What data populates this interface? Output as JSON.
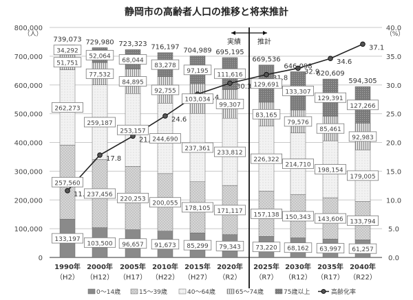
{
  "chart_data": {
    "type": "bar",
    "title": "静岡市の高齢者人口の推移と将来推計",
    "categories": [
      "1990年",
      "2000年",
      "2005年",
      "2010年",
      "2015年",
      "2020年",
      "2025年",
      "2030年",
      "2035年",
      "2040年"
    ],
    "category_sublabels": [
      "（H2）",
      "（H12）",
      "（H17）",
      "（H22）",
      "（H27）",
      "（R2）",
      "（R7）",
      "（R12）",
      "（R17）",
      "（R22）"
    ],
    "series": [
      {
        "name": "0～14歳",
        "color": "#8a8a8a",
        "values": [
          133197,
          103500,
          96657,
          91673,
          85299,
          79343,
          73220,
          68162,
          63997,
          61257
        ]
      },
      {
        "name": "15～39歳",
        "color": "#d4d4d4",
        "values": [
          257560,
          237456,
          220253,
          200055,
          178105,
          171117,
          157138,
          150343,
          143606,
          133794
        ]
      },
      {
        "name": "40～64歳",
        "color": "#eeeeee",
        "values": [
          262273,
          259187,
          253157,
          244690,
          237361,
          233812,
          226322,
          214710,
          198154,
          179005
        ]
      },
      {
        "name": "65～74歳",
        "color": "#bdbdbd",
        "values": [
          51751,
          77532,
          84895,
          92755,
          103034,
          99307,
          83165,
          79576,
          85461,
          92983
        ]
      },
      {
        "name": "75歳以上",
        "color": "#7a7a7a",
        "values": [
          34292,
          52064,
          68044,
          83278,
          97195,
          111616,
          129691,
          133307,
          129391,
          127266
        ]
      }
    ],
    "totals": [
      "739,073",
      "729,980",
      "723,323",
      "716,197",
      "704,989",
      "695,195",
      "669,536",
      "646,098",
      "620,609",
      "594,305"
    ],
    "line": {
      "name": "高齢化率",
      "values": [
        11.6,
        17.8,
        21.1,
        24.6,
        28.4,
        30.3,
        31.8,
        32.9,
        34.6,
        37.1
      ]
    },
    "left_axis": {
      "unit": "（人）",
      "range": [
        0,
        800000
      ],
      "ticks": [
        "0",
        "100,000",
        "200,000",
        "300,000",
        "400,000",
        "500,000",
        "600,000",
        "700,000",
        "800,000"
      ]
    },
    "right_axis": {
      "unit": "（%）",
      "range": [
        0,
        40
      ],
      "ticks": [
        "0.0",
        "5.0",
        "10.0",
        "15.0",
        "20.0",
        "25.0",
        "30.0",
        "35.0",
        "40.0"
      ]
    },
    "annotations": {
      "actual": "実績",
      "projection": "推計"
    },
    "grid": true,
    "legend_position": "bottom"
  }
}
